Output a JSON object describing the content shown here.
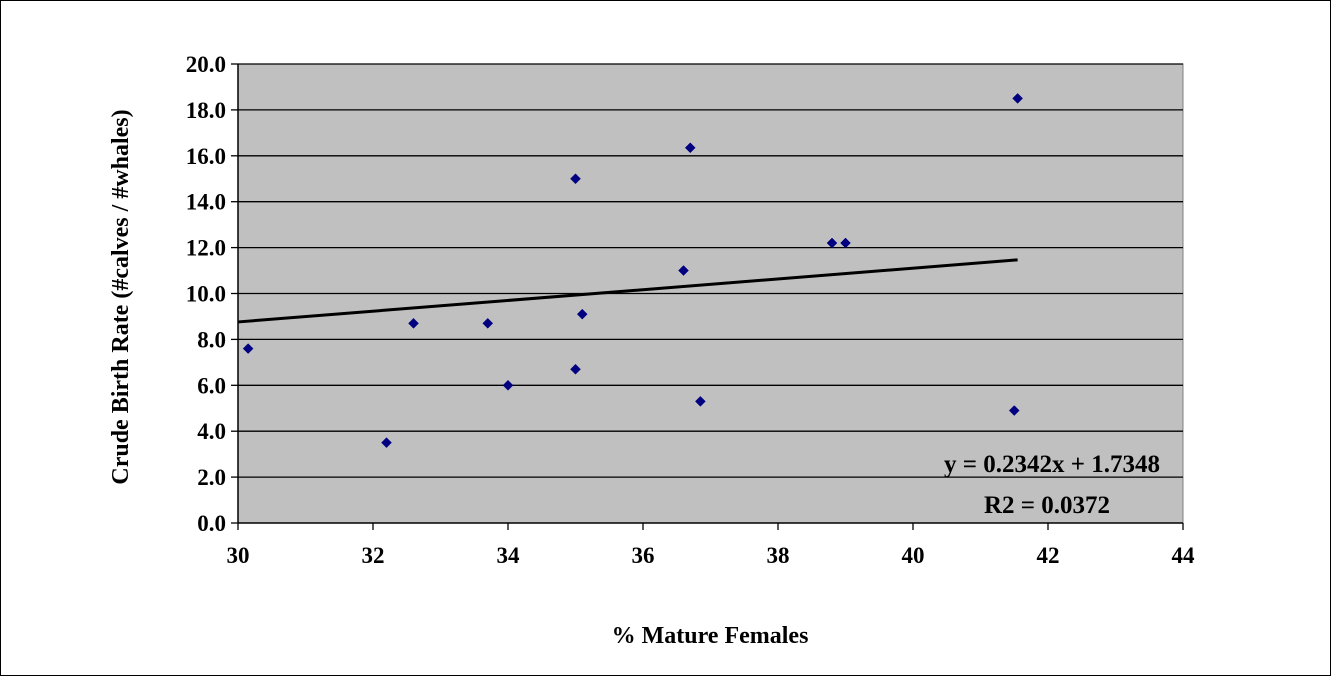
{
  "chart_data": {
    "type": "scatter",
    "title": "",
    "xlabel": "% Mature Females",
    "ylabel": "Crude Birth Rate (#calves / #whales)",
    "xlim": [
      30,
      44
    ],
    "ylim": [
      0,
      20
    ],
    "x_ticks": [
      "30",
      "32",
      "34",
      "36",
      "38",
      "40",
      "42",
      "44"
    ],
    "y_ticks": [
      "0.0",
      "2.0",
      "4.0",
      "6.0",
      "8.0",
      "10.0",
      "12.0",
      "14.0",
      "16.0",
      "18.0",
      "20.0"
    ],
    "grid": "horizontal",
    "legend": "none",
    "series": [
      {
        "marker": "diamond",
        "color": "#000080",
        "points": [
          [
            30.15,
            7.6
          ],
          [
            32.2,
            3.5
          ],
          [
            32.6,
            8.7
          ],
          [
            33.7,
            8.7
          ],
          [
            34.0,
            6.0
          ],
          [
            35.0,
            15.0
          ],
          [
            35.0,
            6.7
          ],
          [
            35.1,
            9.1
          ],
          [
            36.6,
            11.0
          ],
          [
            36.7,
            16.35
          ],
          [
            36.85,
            5.3
          ],
          [
            38.8,
            12.2
          ],
          [
            39.0,
            12.2
          ],
          [
            41.5,
            4.9
          ],
          [
            41.55,
            18.5
          ]
        ]
      }
    ],
    "trendline": {
      "type": "linear",
      "slope": 0.2342,
      "intercept": 1.7348,
      "x_range": [
        30,
        41.55
      ],
      "color": "#000000"
    },
    "annotations": {
      "equation": "y = 0.2342x + 1.7348",
      "r2": "R2 = 0.0372"
    },
    "colors": {
      "plot_background": "#c0c0c0",
      "gridline": "#000000",
      "marker": "#000080"
    }
  }
}
